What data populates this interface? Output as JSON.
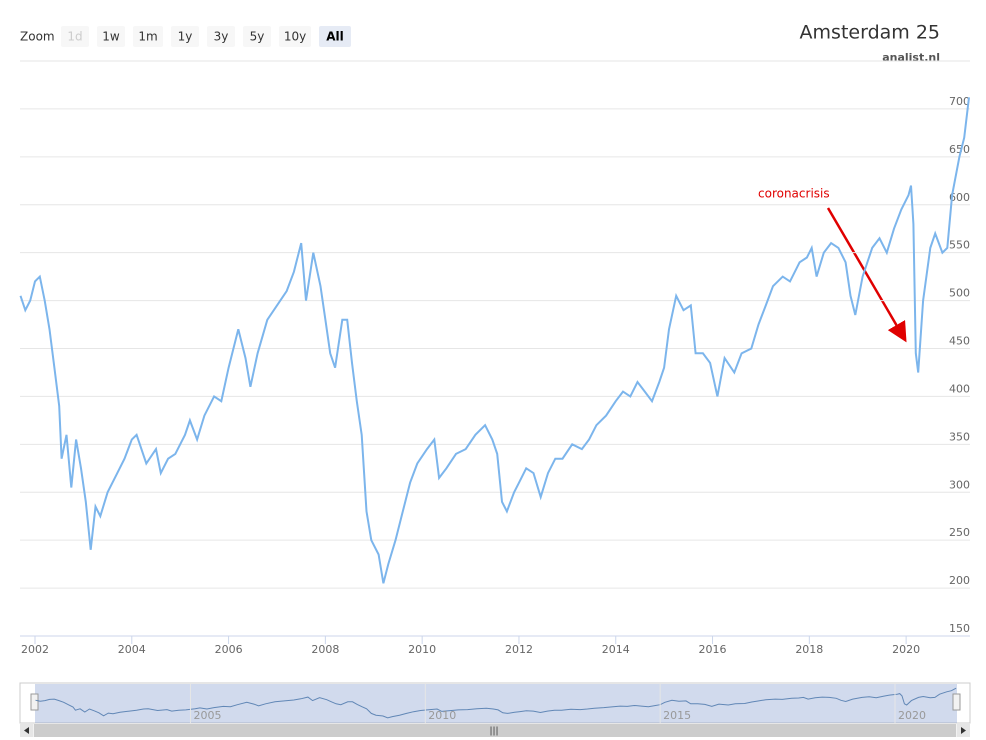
{
  "chart_data": {
    "type": "line",
    "title": "Amsterdam 25",
    "subtitle": "analist.nl",
    "zoom_label": "Zoom",
    "buttons": [
      "1d",
      "1w",
      "1m",
      "1y",
      "3y",
      "5y",
      "10y",
      "All"
    ],
    "selected_button": "All",
    "disabled_button": "1d",
    "annotation": "coronacrisis",
    "grid": true,
    "xlim": [
      2001.69,
      2021.32
    ],
    "xticks": [
      2002,
      2004,
      2006,
      2008,
      2010,
      2012,
      2014,
      2016,
      2018,
      2020
    ],
    "ylim": [
      150,
      750
    ],
    "yticks": [
      150,
      200,
      250,
      300,
      350,
      400,
      450,
      500,
      550,
      600,
      650,
      700
    ],
    "navigator_ticks": [
      2005,
      2010,
      2015,
      2020
    ],
    "x": [
      2001.7,
      2001.8,
      2001.9,
      2002.0,
      2002.1,
      2002.2,
      2002.3,
      2002.4,
      2002.5,
      2002.55,
      2002.65,
      2002.75,
      2002.85,
      2002.95,
      2003.05,
      2003.15,
      2003.25,
      2003.35,
      2003.5,
      2003.7,
      2003.85,
      2004.0,
      2004.1,
      2004.3,
      2004.5,
      2004.6,
      2004.75,
      2004.9,
      2005.1,
      2005.2,
      2005.35,
      2005.5,
      2005.7,
      2005.85,
      2006.0,
      2006.2,
      2006.35,
      2006.45,
      2006.6,
      2006.8,
      2007.0,
      2007.2,
      2007.35,
      2007.5,
      2007.6,
      2007.75,
      2007.9,
      2008.0,
      2008.1,
      2008.2,
      2008.35,
      2008.45,
      2008.55,
      2008.65,
      2008.75,
      2008.85,
      2008.95,
      2009.1,
      2009.2,
      2009.3,
      2009.45,
      2009.6,
      2009.75,
      2009.9,
      2010.1,
      2010.25,
      2010.35,
      2010.5,
      2010.7,
      2010.9,
      2011.1,
      2011.3,
      2011.45,
      2011.55,
      2011.65,
      2011.75,
      2011.9,
      2012.0,
      2012.15,
      2012.3,
      2012.45,
      2012.6,
      2012.75,
      2012.9,
      2013.1,
      2013.3,
      2013.45,
      2013.6,
      2013.8,
      2014.0,
      2014.15,
      2014.3,
      2014.45,
      2014.6,
      2014.75,
      2014.9,
      2015.0,
      2015.1,
      2015.25,
      2015.4,
      2015.55,
      2015.65,
      2015.8,
      2015.95,
      2016.1,
      2016.25,
      2016.45,
      2016.6,
      2016.8,
      2016.95,
      2017.1,
      2017.25,
      2017.45,
      2017.6,
      2017.8,
      2017.95,
      2018.05,
      2018.15,
      2018.3,
      2018.45,
      2018.6,
      2018.75,
      2018.85,
      2018.95,
      2019.1,
      2019.3,
      2019.45,
      2019.6,
      2019.75,
      2019.9,
      2020.05,
      2020.1,
      2020.15,
      2020.2,
      2020.25,
      2020.35,
      2020.5,
      2020.6,
      2020.75,
      2020.85,
      2020.95,
      2021.1,
      2021.2,
      2021.3
    ],
    "series": [
      {
        "name": "Amsterdam 25",
        "color": "#7cb5ec",
        "values": [
          505,
          490,
          500,
          520,
          525,
          500,
          470,
          430,
          390,
          335,
          360,
          305,
          355,
          325,
          290,
          240,
          285,
          275,
          300,
          320,
          335,
          355,
          360,
          330,
          345,
          320,
          335,
          340,
          360,
          375,
          355,
          380,
          400,
          395,
          430,
          470,
          440,
          410,
          445,
          480,
          495,
          510,
          530,
          560,
          500,
          550,
          515,
          480,
          445,
          430,
          480,
          480,
          435,
          395,
          360,
          280,
          250,
          235,
          205,
          225,
          250,
          280,
          310,
          330,
          345,
          355,
          315,
          325,
          340,
          345,
          360,
          370,
          355,
          340,
          290,
          280,
          300,
          310,
          325,
          320,
          295,
          320,
          335,
          335,
          350,
          345,
          355,
          370,
          380,
          395,
          405,
          400,
          415,
          405,
          395,
          415,
          430,
          470,
          505,
          490,
          495,
          445,
          445,
          435,
          400,
          440,
          425,
          445,
          450,
          475,
          495,
          515,
          525,
          520,
          540,
          545,
          555,
          525,
          550,
          560,
          555,
          540,
          505,
          485,
          525,
          555,
          565,
          550,
          575,
          595,
          610,
          620,
          580,
          445,
          425,
          500,
          555,
          570,
          550,
          555,
          610,
          650,
          670,
          712
        ]
      }
    ]
  }
}
